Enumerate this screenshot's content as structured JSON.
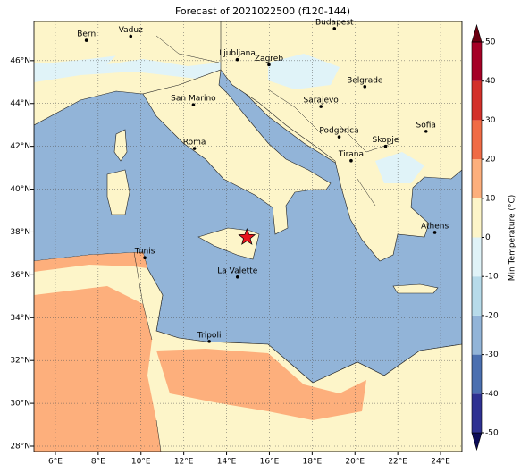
{
  "map": {
    "title": "Forecast of 2021022500 (f120-144)",
    "xlim": [
      5,
      25
    ],
    "ylim": [
      27.75,
      47.83
    ],
    "xticks": [
      {
        "value": 6,
        "label": "6°E"
      },
      {
        "value": 8,
        "label": "8°E"
      },
      {
        "value": 10,
        "label": "10°E"
      },
      {
        "value": 12,
        "label": "12°E"
      },
      {
        "value": 14,
        "label": "14°E"
      },
      {
        "value": 16,
        "label": "16°E"
      },
      {
        "value": 18,
        "label": "18°E"
      },
      {
        "value": 20,
        "label": "20°E"
      },
      {
        "value": 22,
        "label": "22°E"
      },
      {
        "value": 24,
        "label": "24°E"
      }
    ],
    "yticks": [
      {
        "value": 28,
        "label": "28°N"
      },
      {
        "value": 30,
        "label": "30°N"
      },
      {
        "value": 32,
        "label": "32°N"
      },
      {
        "value": 34,
        "label": "34°N"
      },
      {
        "value": 36,
        "label": "36°N"
      },
      {
        "value": 38,
        "label": "38°N"
      },
      {
        "value": 40,
        "label": "40°N"
      },
      {
        "value": 42,
        "label": "42°N"
      },
      {
        "value": 44,
        "label": "44°N"
      },
      {
        "value": 46,
        "label": "46°N"
      }
    ],
    "grid": true,
    "cities": [
      {
        "name": "Bern",
        "lon": 7.45,
        "lat": 46.95
      },
      {
        "name": "Vaduz",
        "lon": 9.52,
        "lat": 47.14
      },
      {
        "name": "Budapest",
        "lon": 19.04,
        "lat": 47.5
      },
      {
        "name": "Ljubljana",
        "lon": 14.5,
        "lat": 46.05
      },
      {
        "name": "Zagreb",
        "lon": 15.98,
        "lat": 45.81
      },
      {
        "name": "Belgrade",
        "lon": 20.46,
        "lat": 44.79
      },
      {
        "name": "San Marino",
        "lon": 12.45,
        "lat": 43.94
      },
      {
        "name": "Sarajevo",
        "lon": 18.41,
        "lat": 43.86
      },
      {
        "name": "Sofia",
        "lon": 23.32,
        "lat": 42.7
      },
      {
        "name": "Podgorica",
        "lon": 19.26,
        "lat": 42.44
      },
      {
        "name": "Skopje",
        "lon": 21.43,
        "lat": 42.0
      },
      {
        "name": "Roma",
        "lon": 12.5,
        "lat": 41.9
      },
      {
        "name": "Tirana",
        "lon": 19.82,
        "lat": 41.33
      },
      {
        "name": "Athens",
        "lon": 23.73,
        "lat": 37.98
      },
      {
        "name": "Tunis",
        "lon": 10.18,
        "lat": 36.8
      },
      {
        "name": "La Valette",
        "lon": 14.51,
        "lat": 35.9
      },
      {
        "name": "Tripoli",
        "lon": 13.19,
        "lat": 32.89
      }
    ],
    "marker": {
      "lon": 14.95,
      "lat": 37.75,
      "color": "#e8141c"
    },
    "colorbar": {
      "label": "Min Temperature (°C)",
      "ticks": [
        -50,
        -40,
        -30,
        -20,
        -10,
        0,
        10,
        20,
        30,
        40,
        50
      ],
      "colors": [
        "#0c0c57",
        "#2e3192",
        "#4b6fb0",
        "#92b4d8",
        "#b7dbea",
        "#e0f3f8",
        "#fdf5c9",
        "#fdaf7c",
        "#f06b45",
        "#d3302a",
        "#a50026",
        "#6b0011"
      ]
    }
  }
}
